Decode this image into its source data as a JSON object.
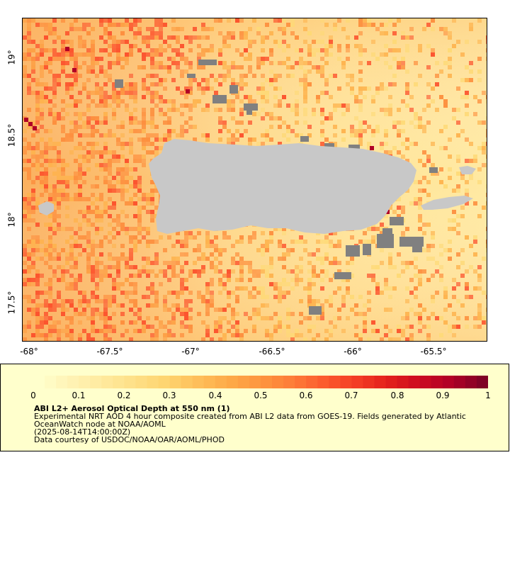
{
  "map": {
    "y_ticks": [
      "19°",
      "18.5°",
      "18°",
      "17.5°"
    ],
    "x_ticks": [
      "-68°",
      "-67.5°",
      "-67°",
      "-66.5°",
      "-66°",
      "-65.5°"
    ]
  },
  "colors": {
    "land": "#c8c8c8",
    "no_data": "#808080",
    "low": "#ffffcc",
    "high": "#800026"
  },
  "colorbar": {
    "ticks": [
      "0",
      "0.1",
      "0.2",
      "0.3",
      "0.4",
      "0.5",
      "0.6",
      "0.7",
      "0.8",
      "0.9",
      "1"
    ],
    "range": [
      0,
      1
    ],
    "colors": [
      "#ffffcc",
      "#fff3b5",
      "#ffea9e",
      "#fee087",
      "#fed470",
      "#febf5a",
      "#fdaa48",
      "#fd953f",
      "#fd7d38",
      "#fc5b2e",
      "#f43d25",
      "#e3211c",
      "#cd0b21",
      "#b10026",
      "#800026"
    ]
  },
  "legend": {
    "title": "ABI L2+ Aerosol Optical Depth at 550 nm (1)",
    "line1": "Experimental NRT AOD 4 hour composite created from ABI L2 data from GOES-19. Fields generated by Atlantic OceanWatch node at NOAA/AOML",
    "line2": "(2025-08-14T14:00:00Z)",
    "line3": "Data courtesy of USDOC/NOAA/OAR/AOML/PHOD"
  }
}
